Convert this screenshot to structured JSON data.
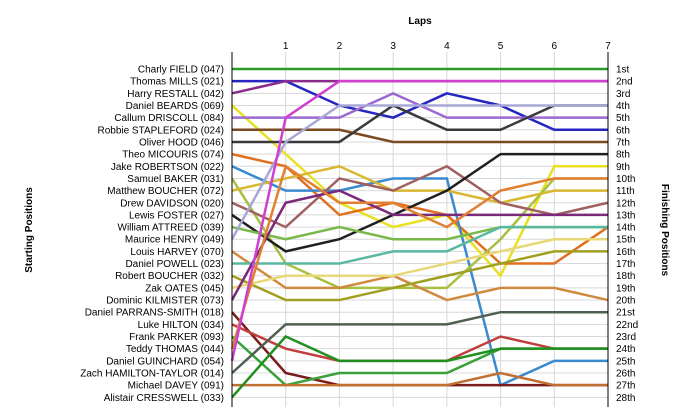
{
  "chart_data": {
    "type": "line",
    "subtype": "bump",
    "top_axis_title": "Laps",
    "left_axis_title": "Starting Positions",
    "right_axis_title": "Finishing Positions",
    "laps": [
      1,
      2,
      3,
      4,
      5,
      6,
      7
    ],
    "starting_labels": [
      "Charly FIELD (047)",
      "Thomas MILLS (021)",
      "Harry RESTALL (042)",
      "Daniel BEARDS (069)",
      "Callum DRISCOLL (084)",
      "Robbie STAPLEFORD (024)",
      "Oliver HOOD (046)",
      "Theo MICOURIS (074)",
      "Jake ROBERTSON (022)",
      "Samuel BAKER (031)",
      "Matthew BOUCHER (072)",
      "Drew DAVIDSON (020)",
      "Lewis FOSTER (027)",
      "William ATTREED (039)",
      "Maurice HENRY (049)",
      "Louis HARVEY (070)",
      "Daniel POWELL (023)",
      "Robert BOUCHER (032)",
      "Zak OATES (045)",
      "Dominic KILMISTER (073)",
      "Daniel PARRANS-SMITH (018)",
      "Luke HILTON (034)",
      "Frank PARKER (093)",
      "Teddy THOMAS (044)",
      "Daniel GUINCHARD (054)",
      "Zach HAMILTON-TAYLOR (014)",
      "Michael DAVEY (091)",
      "Alistair CRESSWELL (033)"
    ],
    "finishing_labels": [
      "1st",
      "2nd",
      "3rd",
      "4th",
      "5th",
      "6th",
      "7th",
      "8th",
      "9th",
      "10th",
      "11th",
      "12th",
      "13th",
      "14th",
      "15th",
      "16th",
      "17th",
      "18th",
      "19th",
      "20th",
      "21st",
      "22nd",
      "23rd",
      "24th",
      "25th",
      "26th",
      "27th",
      "28th"
    ],
    "y_range": [
      1,
      28
    ],
    "grid": true,
    "series": [
      {
        "color": "#2a9a2a",
        "values": [
          1,
          1,
          1,
          1,
          1,
          1,
          1,
          1
        ]
      },
      {
        "color": "#2525c0",
        "values": [
          2,
          2,
          4,
          5,
          3,
          4,
          6,
          6
        ]
      },
      {
        "color": "#8a2a8a",
        "values": [
          3,
          2,
          2,
          2,
          2,
          2,
          2,
          2
        ]
      },
      {
        "color": "#e8e020",
        "values": [
          4,
          8,
          12,
          14,
          13,
          18,
          9,
          9
        ]
      },
      {
        "color": "#9a6ad0",
        "values": [
          5,
          5,
          5,
          3,
          5,
          5,
          5,
          5
        ]
      },
      {
        "color": "#7a4a20",
        "values": [
          6,
          6,
          6,
          7,
          7,
          7,
          7,
          7
        ]
      },
      {
        "color": "#3a3a3a",
        "values": [
          7,
          7,
          7,
          4,
          6,
          6,
          4,
          4
        ]
      },
      {
        "color": "#e07020",
        "values": [
          8,
          9,
          13,
          12,
          13,
          17,
          17,
          14
        ]
      },
      {
        "color": "#3a8ad0",
        "values": [
          9,
          11,
          11,
          10,
          10,
          27,
          25,
          25
        ]
      },
      {
        "color": "#a8c040",
        "values": [
          10,
          17,
          19,
          19,
          19,
          15,
          10,
          10
        ]
      },
      {
        "color": "#d8b830",
        "values": [
          11,
          10,
          9,
          11,
          11,
          12,
          11,
          11
        ]
      },
      {
        "color": "#a06060",
        "values": [
          12,
          14,
          10,
          11,
          9,
          12,
          13,
          12
        ]
      },
      {
        "color": "#202020",
        "values": [
          13,
          16,
          15,
          13,
          11,
          8,
          8,
          8
        ]
      },
      {
        "color": "#7ab84a",
        "values": [
          14,
          15,
          14,
          15,
          15,
          14,
          14,
          14
        ]
      },
      {
        "color": "#a8a8d8",
        "values": [
          15,
          7,
          4,
          4,
          4,
          4,
          4,
          4
        ]
      },
      {
        "color": "#d08a40",
        "values": [
          16,
          19,
          19,
          18,
          20,
          19,
          19,
          20
        ]
      },
      {
        "color": "#5ab8a0",
        "values": [
          17,
          17,
          17,
          16,
          16,
          14,
          14,
          14
        ]
      },
      {
        "color": "#a0a020",
        "values": [
          18,
          20,
          20,
          19,
          18,
          17,
          16,
          16
        ]
      },
      {
        "color": "#e8d878",
        "values": [
          19,
          18,
          18,
          18,
          17,
          16,
          15,
          15
        ]
      },
      {
        "color": "#7b2a7b",
        "values": [
          20,
          12,
          11,
          13,
          13,
          13,
          13,
          13
        ]
      },
      {
        "color": "#7a1a1a",
        "values": [
          21,
          26,
          27,
          27,
          27,
          27,
          27,
          27
        ]
      },
      {
        "color": "#c04040",
        "values": [
          22,
          24,
          25,
          25,
          25,
          23,
          24,
          24
        ]
      },
      {
        "color": "#3aa03a",
        "values": [
          23,
          27,
          26,
          26,
          26,
          24,
          24,
          24
        ]
      },
      {
        "color": "#e08030",
        "values": [
          24,
          9,
          12,
          12,
          14,
          11,
          10,
          10
        ]
      },
      {
        "color": "#d040d0",
        "values": [
          25,
          5,
          2,
          2,
          2,
          2,
          2,
          2
        ]
      },
      {
        "color": "#506050",
        "values": [
          26,
          22,
          22,
          22,
          22,
          21,
          21,
          21
        ]
      },
      {
        "color": "#c07030",
        "values": [
          27,
          27,
          27,
          27,
          27,
          26,
          27,
          27
        ]
      },
      {
        "color": "#209020",
        "values": [
          28,
          23,
          25,
          25,
          25,
          24,
          24,
          24
        ]
      }
    ]
  }
}
